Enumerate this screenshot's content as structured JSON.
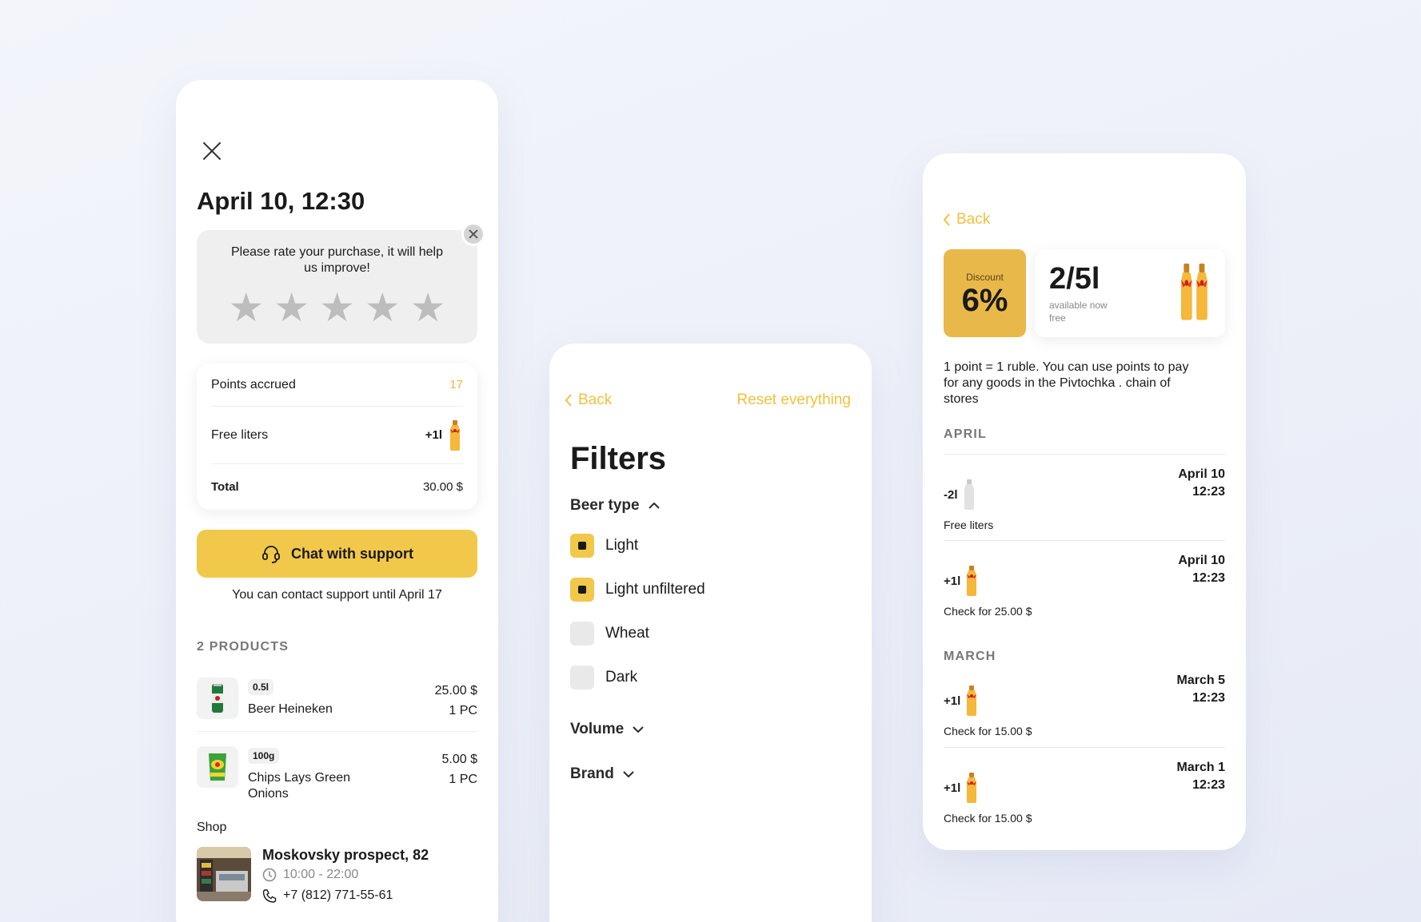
{
  "purchase": {
    "title": "April 10, 12:30",
    "rate_prompt": "Please rate your purchase, it will help us improve!",
    "stars": [
      "★",
      "★",
      "★",
      "★",
      "★"
    ],
    "points_label": "Points accrued",
    "points_value": "17",
    "free_label": "Free liters",
    "free_value": "+1l",
    "total_label": "Total",
    "total_value": "30.00 $",
    "chat_label": "Chat with support",
    "support_note": "You can contact support until April 17",
    "products_heading": "2 PRODUCTS",
    "products": [
      {
        "tag": "0.5l",
        "name": "Beer Heineken",
        "price": "25.00 $",
        "qty": "1 PC"
      },
      {
        "tag": "100g",
        "name": "Chips Lays Green Onions",
        "price": "5.00 $",
        "qty": "1 PC"
      }
    ],
    "shop_label": "Shop",
    "shop_name": "Moskovsky prospect, 82",
    "shop_hours": "10:00 - 22:00",
    "shop_phone": "+7 (812) 771-55-61"
  },
  "filters": {
    "back": "Back",
    "reset": "Reset everything",
    "title": "Filters",
    "beer_type": "Beer type",
    "options": [
      {
        "label": "Light",
        "checked": true
      },
      {
        "label": "Light unfiltered",
        "checked": true
      },
      {
        "label": "Wheat",
        "checked": false
      },
      {
        "label": "Dark",
        "checked": false
      }
    ],
    "volume": "Volume",
    "brand": "Brand"
  },
  "history": {
    "back": "Back",
    "discount_label": "Discount",
    "discount_value": "6%",
    "liters_value": "2/5l",
    "liters_sub": "available now free",
    "info": "1 point = 1 ruble. You can use points to pay for any goods in the Pivtochka . chain of stores",
    "april": "APRIL",
    "march": "MARCH",
    "transactions": [
      {
        "amount": "-2l",
        "date": "April 10",
        "time": "12:23",
        "note": "Free liters"
      },
      {
        "amount": "+1l",
        "date": "April 10",
        "time": "12:23",
        "note": "Check for 25.00 $"
      },
      {
        "amount": "+1l",
        "date": "March 5",
        "time": "12:23",
        "note": "Check for 15.00 $"
      },
      {
        "amount": "+1l",
        "date": "March 1",
        "time": "12:23",
        "note": "Check for 15.00 $"
      }
    ]
  },
  "colors": {
    "accent": "#f2c84b",
    "accent_text": "#f0c23c",
    "discount_bg": "#e9b84a"
  }
}
